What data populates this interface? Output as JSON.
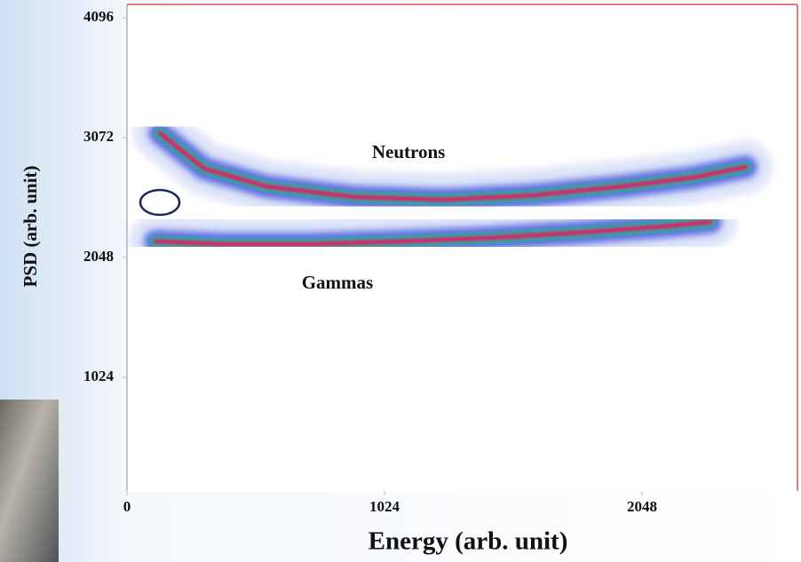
{
  "chart_data": {
    "type": "density",
    "x_label": "Energy (arb. unit)",
    "y_label": "PSD (arb. unit)",
    "xlim": [
      0,
      2680
    ],
    "ylim": [
      0,
      4200
    ],
    "xticks": [
      0,
      1024,
      2048
    ],
    "yticks": [
      1024,
      2048,
      3072,
      4096
    ],
    "series": [
      {
        "name": "Neutrons",
        "color": "#e8186e",
        "x": [
          131,
          307,
          554,
          907,
          1261,
          1614,
          1967,
          2249,
          2461
        ],
        "values": [
          3110,
          2807,
          2655,
          2564,
          2541,
          2579,
          2655,
          2731,
          2822
        ]
      },
      {
        "name": "Gammas",
        "color": "#e8186e",
        "x": [
          113,
          378,
          731,
          1084,
          1437,
          1790,
          2143,
          2320
        ],
        "values": [
          2185,
          2162,
          2162,
          2185,
          2215,
          2260,
          2314,
          2352
        ]
      }
    ]
  }
}
